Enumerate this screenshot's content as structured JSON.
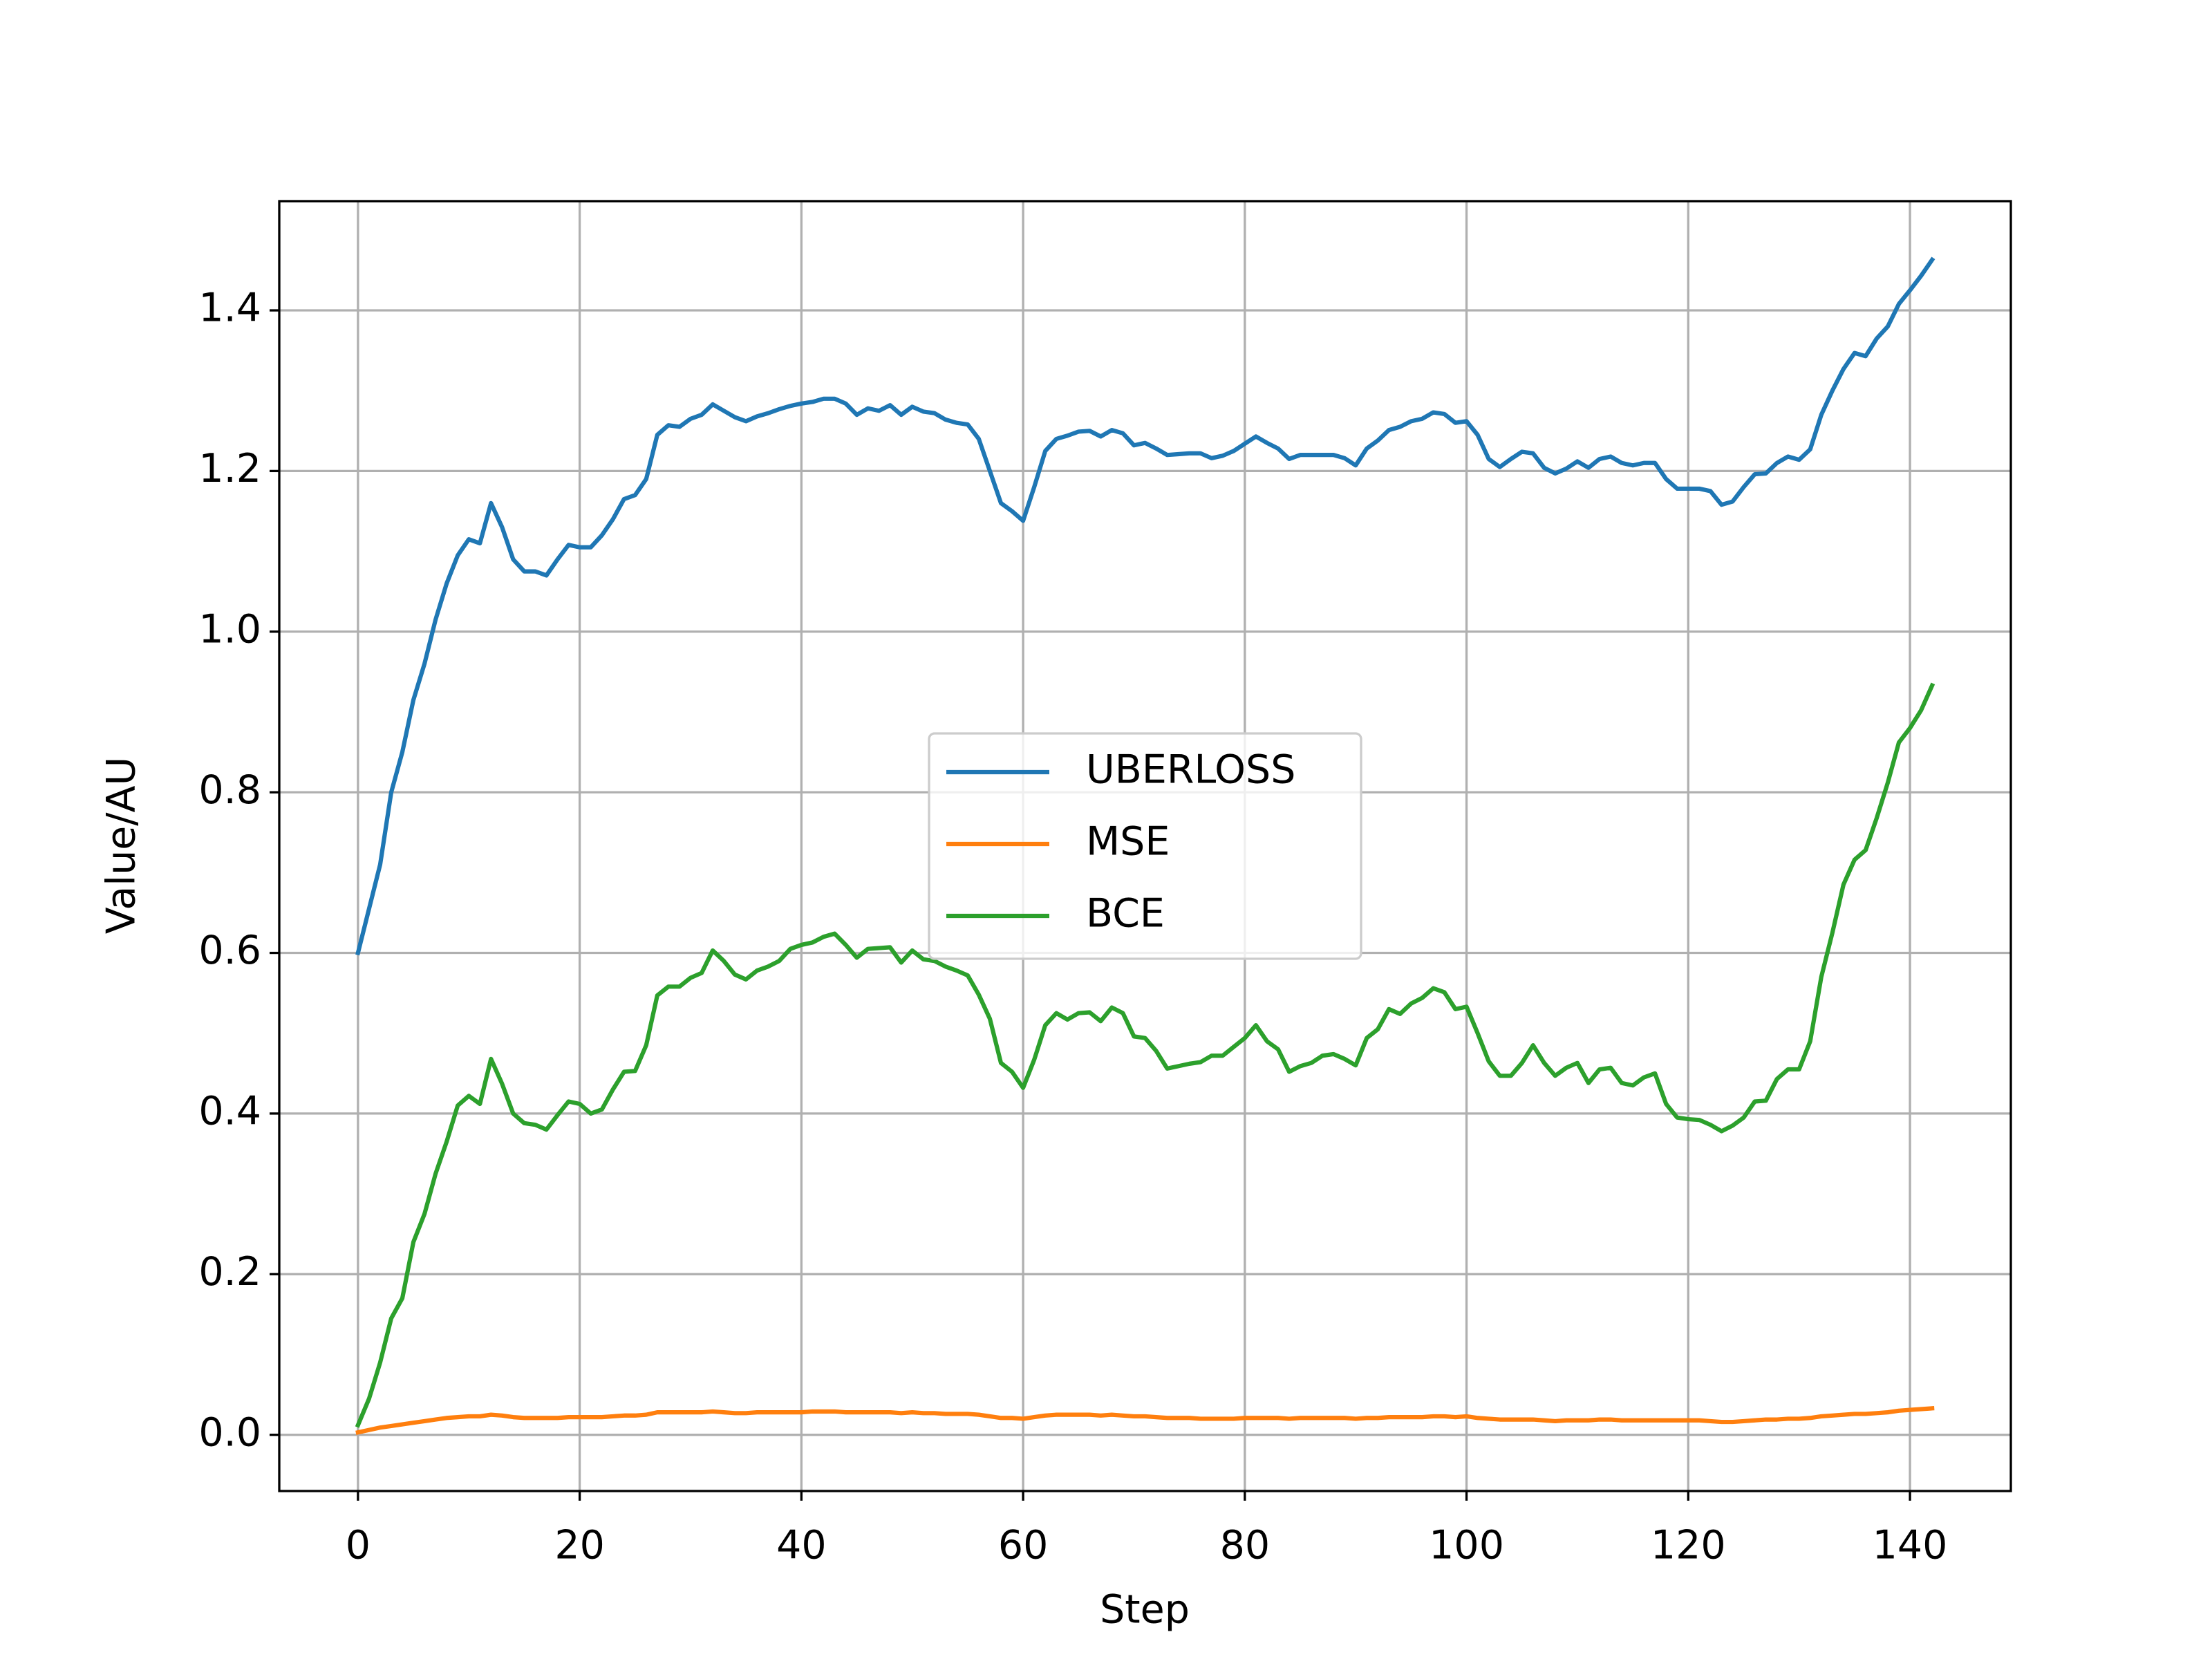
{
  "chart_data": {
    "type": "line",
    "x_label": "Step",
    "y_label": "Value/AU",
    "x": [
      0,
      1,
      2,
      3,
      4,
      5,
      6,
      7,
      8,
      9,
      10,
      11,
      12,
      13,
      14,
      15,
      16,
      17,
      18,
      19,
      20,
      21,
      22,
      23,
      24,
      25,
      26,
      27,
      28,
      29,
      30,
      31,
      32,
      33,
      34,
      35,
      36,
      37,
      38,
      39,
      40,
      41,
      42,
      43,
      44,
      45,
      46,
      47,
      48,
      49,
      50,
      51,
      52,
      53,
      54,
      55,
      56,
      57,
      58,
      59,
      60,
      61,
      62,
      63,
      64,
      65,
      66,
      67,
      68,
      69,
      70,
      71,
      72,
      73,
      74,
      75,
      76,
      77,
      78,
      79,
      80,
      81,
      82,
      83,
      84,
      85,
      86,
      87,
      88,
      89,
      90,
      91,
      92,
      93,
      94,
      95,
      96,
      97,
      98,
      99,
      100,
      101,
      102,
      103,
      104,
      105,
      106,
      107,
      108,
      109,
      110,
      111,
      112,
      113,
      114,
      115,
      116,
      117,
      118,
      119,
      120,
      121,
      122,
      123,
      124,
      125,
      126,
      127,
      128,
      129,
      130,
      131,
      132,
      133,
      134,
      135,
      136,
      137,
      138,
      139,
      140,
      141,
      142
    ],
    "series": [
      {
        "name": "UBERLOSS",
        "color": "#1f77b4",
        "values": [
          0.6,
          0.655,
          0.71,
          0.8,
          0.85,
          0.915,
          0.96,
          1.015,
          1.06,
          1.095,
          1.115,
          1.11,
          1.16,
          1.13,
          1.09,
          1.075,
          1.075,
          1.07,
          1.09,
          1.108,
          1.105,
          1.105,
          1.12,
          1.14,
          1.165,
          1.17,
          1.19,
          1.245,
          1.257,
          1.255,
          1.265,
          1.27,
          1.283,
          1.275,
          1.267,
          1.262,
          1.268,
          1.272,
          1.277,
          1.281,
          1.284,
          1.286,
          1.29,
          1.29,
          1.284,
          1.27,
          1.278,
          1.275,
          1.282,
          1.27,
          1.28,
          1.274,
          1.272,
          1.264,
          1.26,
          1.258,
          1.24,
          1.2,
          1.16,
          1.15,
          1.138,
          1.18,
          1.225,
          1.24,
          1.244,
          1.249,
          1.25,
          1.243,
          1.251,
          1.247,
          1.232,
          1.235,
          1.228,
          1.22,
          1.221,
          1.222,
          1.222,
          1.216,
          1.219,
          1.225,
          1.234,
          1.243,
          1.235,
          1.228,
          1.215,
          1.22,
          1.22,
          1.22,
          1.22,
          1.216,
          1.207,
          1.228,
          1.238,
          1.251,
          1.255,
          1.262,
          1.265,
          1.273,
          1.271,
          1.26,
          1.262,
          1.245,
          1.215,
          1.205,
          1.215,
          1.224,
          1.222,
          1.204,
          1.197,
          1.203,
          1.212,
          1.204,
          1.215,
          1.218,
          1.21,
          1.207,
          1.21,
          1.21,
          1.19,
          1.178,
          1.178,
          1.178,
          1.175,
          1.158,
          1.162,
          1.18,
          1.196,
          1.197,
          1.21,
          1.218,
          1.214,
          1.227,
          1.27,
          1.3,
          1.327,
          1.347,
          1.343,
          1.365,
          1.38,
          1.408,
          1.425,
          1.443,
          1.463
        ]
      },
      {
        "name": "MSE",
        "color": "#ff7f0e",
        "values": [
          0.003,
          0.006,
          0.009,
          0.011,
          0.013,
          0.015,
          0.017,
          0.019,
          0.021,
          0.022,
          0.023,
          0.023,
          0.025,
          0.024,
          0.022,
          0.021,
          0.021,
          0.021,
          0.021,
          0.022,
          0.022,
          0.022,
          0.022,
          0.023,
          0.024,
          0.024,
          0.025,
          0.028,
          0.028,
          0.028,
          0.028,
          0.028,
          0.029,
          0.028,
          0.027,
          0.027,
          0.028,
          0.028,
          0.028,
          0.028,
          0.028,
          0.029,
          0.029,
          0.029,
          0.028,
          0.028,
          0.028,
          0.028,
          0.028,
          0.027,
          0.028,
          0.027,
          0.027,
          0.026,
          0.026,
          0.026,
          0.025,
          0.023,
          0.021,
          0.021,
          0.02,
          0.022,
          0.024,
          0.025,
          0.025,
          0.025,
          0.025,
          0.024,
          0.025,
          0.024,
          0.023,
          0.023,
          0.022,
          0.021,
          0.021,
          0.021,
          0.02,
          0.02,
          0.02,
          0.02,
          0.021,
          0.021,
          0.021,
          0.021,
          0.02,
          0.021,
          0.021,
          0.021,
          0.021,
          0.021,
          0.02,
          0.021,
          0.021,
          0.022,
          0.022,
          0.022,
          0.022,
          0.023,
          0.023,
          0.022,
          0.023,
          0.021,
          0.02,
          0.019,
          0.019,
          0.019,
          0.019,
          0.018,
          0.017,
          0.018,
          0.018,
          0.018,
          0.019,
          0.019,
          0.018,
          0.018,
          0.018,
          0.018,
          0.018,
          0.018,
          0.018,
          0.018,
          0.017,
          0.016,
          0.016,
          0.017,
          0.018,
          0.019,
          0.019,
          0.02,
          0.02,
          0.021,
          0.023,
          0.024,
          0.025,
          0.026,
          0.026,
          0.027,
          0.028,
          0.03,
          0.031,
          0.032,
          0.033
        ]
      },
      {
        "name": "BCE",
        "color": "#2ca02c",
        "values": [
          0.012,
          0.045,
          0.09,
          0.145,
          0.17,
          0.24,
          0.275,
          0.325,
          0.365,
          0.41,
          0.422,
          0.412,
          0.468,
          0.437,
          0.4,
          0.388,
          0.386,
          0.38,
          0.398,
          0.415,
          0.412,
          0.4,
          0.405,
          0.43,
          0.452,
          0.453,
          0.485,
          0.547,
          0.558,
          0.558,
          0.569,
          0.575,
          0.603,
          0.59,
          0.573,
          0.567,
          0.578,
          0.583,
          0.59,
          0.605,
          0.61,
          0.613,
          0.62,
          0.624,
          0.61,
          0.594,
          0.605,
          0.606,
          0.607,
          0.588,
          0.603,
          0.592,
          0.59,
          0.583,
          0.578,
          0.572,
          0.548,
          0.518,
          0.463,
          0.452,
          0.432,
          0.467,
          0.51,
          0.525,
          0.517,
          0.525,
          0.526,
          0.515,
          0.532,
          0.525,
          0.496,
          0.494,
          0.478,
          0.456,
          0.459,
          0.462,
          0.464,
          0.472,
          0.472,
          0.483,
          0.494,
          0.51,
          0.49,
          0.48,
          0.452,
          0.459,
          0.463,
          0.472,
          0.474,
          0.468,
          0.46,
          0.494,
          0.505,
          0.53,
          0.524,
          0.537,
          0.544,
          0.556,
          0.551,
          0.53,
          0.533,
          0.5,
          0.465,
          0.447,
          0.447,
          0.463,
          0.485,
          0.463,
          0.447,
          0.457,
          0.463,
          0.438,
          0.455,
          0.457,
          0.438,
          0.435,
          0.445,
          0.45,
          0.412,
          0.395,
          0.393,
          0.392,
          0.386,
          0.378,
          0.385,
          0.395,
          0.415,
          0.416,
          0.443,
          0.455,
          0.455,
          0.49,
          0.57,
          0.625,
          0.685,
          0.716,
          0.728,
          0.768,
          0.812,
          0.862,
          0.88,
          0.902,
          0.933
        ]
      }
    ],
    "xlim": [
      -7.1,
      149.1
    ],
    "ylim": [
      -0.07,
      1.536
    ],
    "xticks": [
      0,
      20,
      40,
      60,
      80,
      100,
      120,
      140
    ],
    "yticks": [
      {
        "value": 0,
        "label": "0.0"
      },
      0.2,
      0.4,
      0.6,
      0.8,
      {
        "value": 1,
        "label": "1.0"
      },
      1.2,
      1.4
    ],
    "grid": true,
    "legend": "center"
  }
}
